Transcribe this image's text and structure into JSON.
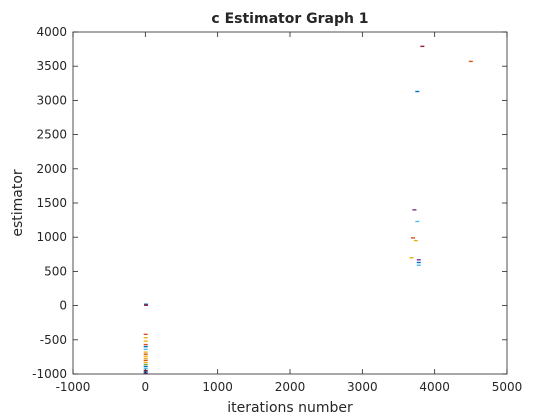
{
  "chart_data": {
    "type": "scatter",
    "title": "c Estimator Graph 1",
    "xlabel": "iterations number",
    "ylabel": "estimator",
    "xlim": [
      -1000,
      5000
    ],
    "ylim": [
      -1000,
      4000
    ],
    "xticks": [
      -1000,
      0,
      1000,
      2000,
      3000,
      4000,
      5000
    ],
    "yticks": [
      -1000,
      -500,
      0,
      500,
      1000,
      1500,
      2000,
      2500,
      3000,
      3500,
      4000
    ],
    "grid": false,
    "legend": "none",
    "marker": "short horizontal dash",
    "points": [
      {
        "x": 3830,
        "y": 3790,
        "color": "#a2142f"
      },
      {
        "x": 4500,
        "y": 3570,
        "color": "#d95319"
      },
      {
        "x": 3760,
        "y": 3130,
        "color": "#0072bd"
      },
      {
        "x": 3720,
        "y": 1400,
        "color": "#7e2f8e"
      },
      {
        "x": 3760,
        "y": 1230,
        "color": "#4dbeee"
      },
      {
        "x": 3700,
        "y": 990,
        "color": "#d95319"
      },
      {
        "x": 3740,
        "y": 950,
        "color": "#edb120"
      },
      {
        "x": 3680,
        "y": 700,
        "color": "#edb120"
      },
      {
        "x": 3780,
        "y": 670,
        "color": "#7e2f8e"
      },
      {
        "x": 3780,
        "y": 630,
        "color": "#0072bd"
      },
      {
        "x": 3780,
        "y": 590,
        "color": "#4dbeee"
      },
      {
        "x": 10,
        "y": 20,
        "color": "#0072bd"
      },
      {
        "x": 10,
        "y": 5,
        "color": "#a2142f"
      },
      {
        "x": 5,
        "y": -420,
        "color": "#d95319"
      },
      {
        "x": 5,
        "y": -470,
        "color": "#edb120"
      },
      {
        "x": 5,
        "y": -520,
        "color": "#edb120"
      },
      {
        "x": 5,
        "y": -570,
        "color": "#d95319"
      },
      {
        "x": 5,
        "y": -600,
        "color": "#0072bd"
      },
      {
        "x": 5,
        "y": -640,
        "color": "#4dbeee"
      },
      {
        "x": 5,
        "y": -680,
        "color": "#edb120"
      },
      {
        "x": 5,
        "y": -710,
        "color": "#d95319"
      },
      {
        "x": 5,
        "y": -740,
        "color": "#edb120"
      },
      {
        "x": 5,
        "y": -770,
        "color": "#edb120"
      },
      {
        "x": 5,
        "y": -800,
        "color": "#d95319"
      },
      {
        "x": 5,
        "y": -830,
        "color": "#edb120"
      },
      {
        "x": 5,
        "y": -860,
        "color": "#77ac30"
      },
      {
        "x": 5,
        "y": -890,
        "color": "#0072bd"
      },
      {
        "x": 5,
        "y": -920,
        "color": "#4dbeee"
      },
      {
        "x": 5,
        "y": -950,
        "color": "#a2142f"
      },
      {
        "x": 5,
        "y": -970,
        "color": "#0072bd"
      },
      {
        "x": 5,
        "y": -990,
        "color": "#7e2f8e"
      }
    ],
    "colors": {
      "axis": "#262626"
    }
  }
}
